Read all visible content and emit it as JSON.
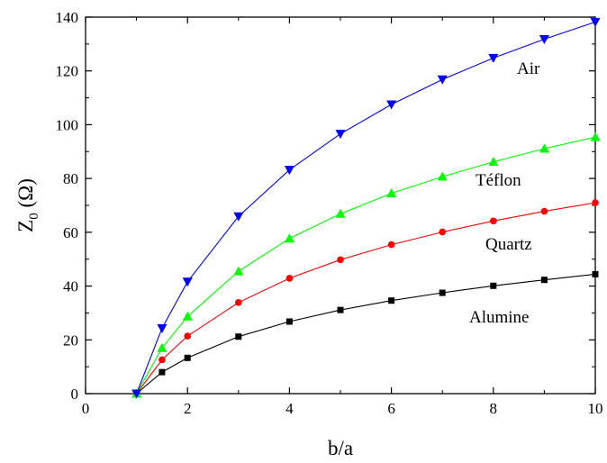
{
  "chart_data": {
    "type": "line",
    "xlabel": "b/a",
    "ylabel_main": "Z",
    "ylabel_sub": "0",
    "ylabel_unit": " (Ω)",
    "xlim": [
      0,
      10
    ],
    "ylim": [
      0,
      140
    ],
    "x_ticks": [
      "0",
      "2",
      "4",
      "6",
      "8",
      "10"
    ],
    "y_ticks": [
      "0",
      "20",
      "40",
      "60",
      "80",
      "100",
      "120",
      "140"
    ],
    "grid": false,
    "x": [
      1,
      1.5,
      2,
      3,
      4,
      5,
      6,
      7,
      8,
      9,
      10
    ],
    "series": [
      {
        "name": "Alumine",
        "color": "#000000",
        "marker": "square",
        "values": [
          0,
          8,
          13.3,
          21.2,
          26.8,
          31.1,
          34.6,
          37.5,
          40.1,
          42.3,
          44.4
        ]
      },
      {
        "name": "Quartz",
        "color": "#ff0000",
        "marker": "circle",
        "values": [
          0,
          12.6,
          21.4,
          33.9,
          42.9,
          49.8,
          55.4,
          60.1,
          64.2,
          67.8,
          71.0
        ]
      },
      {
        "name": "Téflon",
        "color": "#00ff00",
        "marker": "triangle-up",
        "values": [
          0,
          17,
          28.7,
          45.5,
          57.7,
          66.9,
          74.5,
          80.7,
          86.2,
          91.1,
          95.4
        ]
      },
      {
        "name": "Air",
        "color": "#0000ff",
        "marker": "triangle-down",
        "values": [
          0,
          24.3,
          41.6,
          65.9,
          83.2,
          96.6,
          107.5,
          116.8,
          124.8,
          131.8,
          138.2
        ]
      }
    ]
  }
}
